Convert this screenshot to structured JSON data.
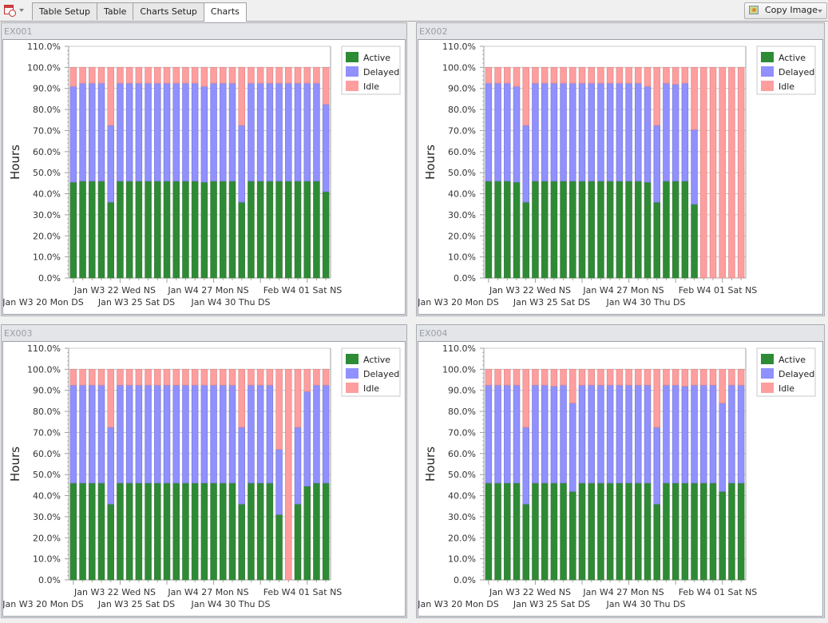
{
  "toolbar": {
    "app_menu_icon": "calendar-clock-icon",
    "tabs": [
      {
        "label": "Table Setup",
        "active": false
      },
      {
        "label": "Table",
        "active": false
      },
      {
        "label": "Charts Setup",
        "active": false
      },
      {
        "label": "Charts",
        "active": true
      }
    ],
    "copy_image": {
      "label": "Copy Image",
      "icon": "image-icon"
    }
  },
  "colors": {
    "active": "#2e8b35",
    "delayed": "#9090ff",
    "idle": "#ff9e9e"
  },
  "chart_data": [
    {
      "panel_title": "EX001",
      "type": "bar",
      "stacked": true,
      "ylabel": "Hours",
      "yticks": [
        "0.0%",
        "10.0%",
        "20.0%",
        "30.0%",
        "40.0%",
        "50.0%",
        "60.0%",
        "70.0%",
        "80.0%",
        "90.0%",
        "100.0%",
        "110.0%"
      ],
      "ylim": [
        0,
        110
      ],
      "xtick_labels_row1": [
        "Jan W3 22 Wed NS",
        "Jan W4 27 Mon NS",
        "Feb W4 01 Sat NS"
      ],
      "xtick_labels_row2": [
        "Jan W3 20 Mon DS",
        "Jan W3 25 Sat DS",
        "Jan W4 30 Thu DS"
      ],
      "legend": [
        "Active",
        "Delayed",
        "Idle"
      ],
      "series": [
        {
          "name": "Active",
          "values": [
            45.5,
            46,
            46,
            46,
            36,
            46,
            46,
            46,
            46,
            46,
            46,
            46,
            46,
            46,
            45.5,
            46,
            46,
            46,
            36,
            46,
            46,
            46,
            46,
            46,
            46,
            46,
            46,
            41
          ]
        },
        {
          "name": "Delayed",
          "values": [
            45.5,
            46.5,
            46.5,
            46.5,
            36.5,
            46.5,
            46.5,
            46.5,
            46.5,
            46.5,
            46.5,
            46.5,
            46.5,
            46.5,
            45.5,
            46.5,
            46.5,
            46.5,
            36.5,
            46.5,
            46.5,
            46.5,
            46.5,
            46.5,
            46.5,
            46.5,
            46.5,
            41.5
          ]
        },
        {
          "name": "Idle",
          "values": [
            9,
            7.5,
            7.5,
            7.5,
            27.5,
            7.5,
            7.5,
            7.5,
            7.5,
            7.5,
            7.5,
            7.5,
            7.5,
            7.5,
            9,
            7.5,
            7.5,
            7.5,
            27.5,
            7.5,
            7.5,
            7.5,
            7.5,
            7.5,
            7.5,
            7.5,
            7.5,
            17.5
          ]
        }
      ]
    },
    {
      "panel_title": "EX002",
      "type": "bar",
      "stacked": true,
      "ylabel": "Hours",
      "yticks": [
        "0.0%",
        "10.0%",
        "20.0%",
        "30.0%",
        "40.0%",
        "50.0%",
        "60.0%",
        "70.0%",
        "80.0%",
        "90.0%",
        "100.0%",
        "110.0%"
      ],
      "ylim": [
        0,
        110
      ],
      "xtick_labels_row1": [
        "Jan W3 22 Wed NS",
        "Jan W4 27 Mon NS",
        "Feb W4 01 Sat NS"
      ],
      "xtick_labels_row2": [
        "Jan W3 20 Mon DS",
        "Jan W3 25 Sat DS",
        "Jan W4 30 Thu DS"
      ],
      "legend": [
        "Active",
        "Delayed",
        "Idle"
      ],
      "series": [
        {
          "name": "Active",
          "values": [
            46,
            46,
            46,
            45.5,
            36,
            46,
            46,
            46,
            46,
            46,
            46,
            46,
            46,
            46,
            46,
            46,
            46,
            45.5,
            36,
            46,
            46,
            46,
            35,
            0,
            0,
            0,
            0,
            0
          ]
        },
        {
          "name": "Delayed",
          "values": [
            46.5,
            46.5,
            46.5,
            45.5,
            36.5,
            46.5,
            46.5,
            46.5,
            46.5,
            46.5,
            46.5,
            46.5,
            46.5,
            46.5,
            46.5,
            46.5,
            46.5,
            45.5,
            36.5,
            46.5,
            46,
            46.5,
            35.5,
            0,
            0,
            0,
            0,
            0
          ]
        },
        {
          "name": "Idle",
          "values": [
            7.5,
            7.5,
            7.5,
            9,
            27.5,
            7.5,
            7.5,
            7.5,
            7.5,
            7.5,
            7.5,
            7.5,
            7.5,
            7.5,
            7.5,
            7.5,
            7.5,
            9,
            27.5,
            7.5,
            8,
            7.5,
            29.5,
            100,
            100,
            100,
            100,
            100
          ]
        }
      ]
    },
    {
      "panel_title": "EX003",
      "type": "bar",
      "stacked": true,
      "ylabel": "Hours",
      "yticks": [
        "0.0%",
        "10.0%",
        "20.0%",
        "30.0%",
        "40.0%",
        "50.0%",
        "60.0%",
        "70.0%",
        "80.0%",
        "90.0%",
        "100.0%",
        "110.0%"
      ],
      "ylim": [
        0,
        110
      ],
      "xtick_labels_row1": [
        "Jan W3 22 Wed NS",
        "Jan W4 27 Mon NS",
        "Feb W4 01 Sat NS"
      ],
      "xtick_labels_row2": [
        "Jan W3 20 Mon DS",
        "Jan W3 25 Sat DS",
        "Jan W4 30 Thu DS"
      ],
      "legend": [
        "Active",
        "Delayed",
        "Idle"
      ],
      "series": [
        {
          "name": "Active",
          "values": [
            46,
            46,
            46,
            46,
            36,
            46,
            46,
            46,
            46,
            46,
            46,
            46,
            46,
            46,
            46,
            46,
            46,
            46,
            36,
            46,
            46,
            46,
            31,
            0,
            36,
            44.5,
            46,
            46
          ]
        },
        {
          "name": "Delayed",
          "values": [
            46.5,
            46.5,
            46.5,
            46.5,
            36.5,
            46.5,
            46.5,
            46.5,
            46.5,
            46.5,
            46.5,
            46.5,
            46.5,
            46.5,
            46.5,
            46.5,
            46.5,
            46.5,
            36.5,
            46.5,
            46.5,
            46.5,
            31,
            0,
            36.5,
            45,
            46.5,
            46.5
          ]
        },
        {
          "name": "Idle",
          "values": [
            7.5,
            7.5,
            7.5,
            7.5,
            27.5,
            7.5,
            7.5,
            7.5,
            7.5,
            7.5,
            7.5,
            7.5,
            7.5,
            7.5,
            7.5,
            7.5,
            7.5,
            7.5,
            27.5,
            7.5,
            7.5,
            7.5,
            38,
            100,
            27.5,
            10.5,
            7.5,
            7.5
          ]
        }
      ]
    },
    {
      "panel_title": "EX004",
      "type": "bar",
      "stacked": true,
      "ylabel": "Hours",
      "yticks": [
        "0.0%",
        "10.0%",
        "20.0%",
        "30.0%",
        "40.0%",
        "50.0%",
        "60.0%",
        "70.0%",
        "80.0%",
        "90.0%",
        "100.0%",
        "110.0%"
      ],
      "ylim": [
        0,
        110
      ],
      "xtick_labels_row1": [
        "Jan W3 22 Wed NS",
        "Jan W4 27 Mon NS",
        "Feb W4 01 Sat NS"
      ],
      "xtick_labels_row2": [
        "Jan W3 20 Mon DS",
        "Jan W3 25 Sat DS",
        "Jan W4 30 Thu DS"
      ],
      "legend": [
        "Active",
        "Delayed",
        "Idle"
      ],
      "series": [
        {
          "name": "Active",
          "values": [
            46,
            46,
            46,
            46,
            36,
            46,
            46,
            46,
            46,
            42,
            46,
            46,
            46,
            46,
            46,
            46,
            46,
            46,
            36,
            46,
            46,
            46,
            46,
            46,
            46,
            42,
            46,
            46
          ]
        },
        {
          "name": "Delayed",
          "values": [
            46.5,
            46.5,
            46.5,
            46.5,
            36.5,
            46.5,
            46.5,
            46,
            46.5,
            42,
            46.5,
            46.5,
            46.5,
            46.5,
            46.5,
            46.5,
            46.5,
            46.5,
            36.5,
            46.5,
            46.5,
            46,
            46.5,
            46.5,
            46.5,
            42,
            46.5,
            46.5
          ]
        },
        {
          "name": "Idle",
          "values": [
            7.5,
            7.5,
            7.5,
            7.5,
            27.5,
            7.5,
            7.5,
            8,
            7.5,
            16,
            7.5,
            7.5,
            7.5,
            7.5,
            7.5,
            7.5,
            7.5,
            7.5,
            27.5,
            7.5,
            7.5,
            8,
            7.5,
            7.5,
            7.5,
            16,
            7.5,
            7.5
          ]
        }
      ]
    }
  ]
}
